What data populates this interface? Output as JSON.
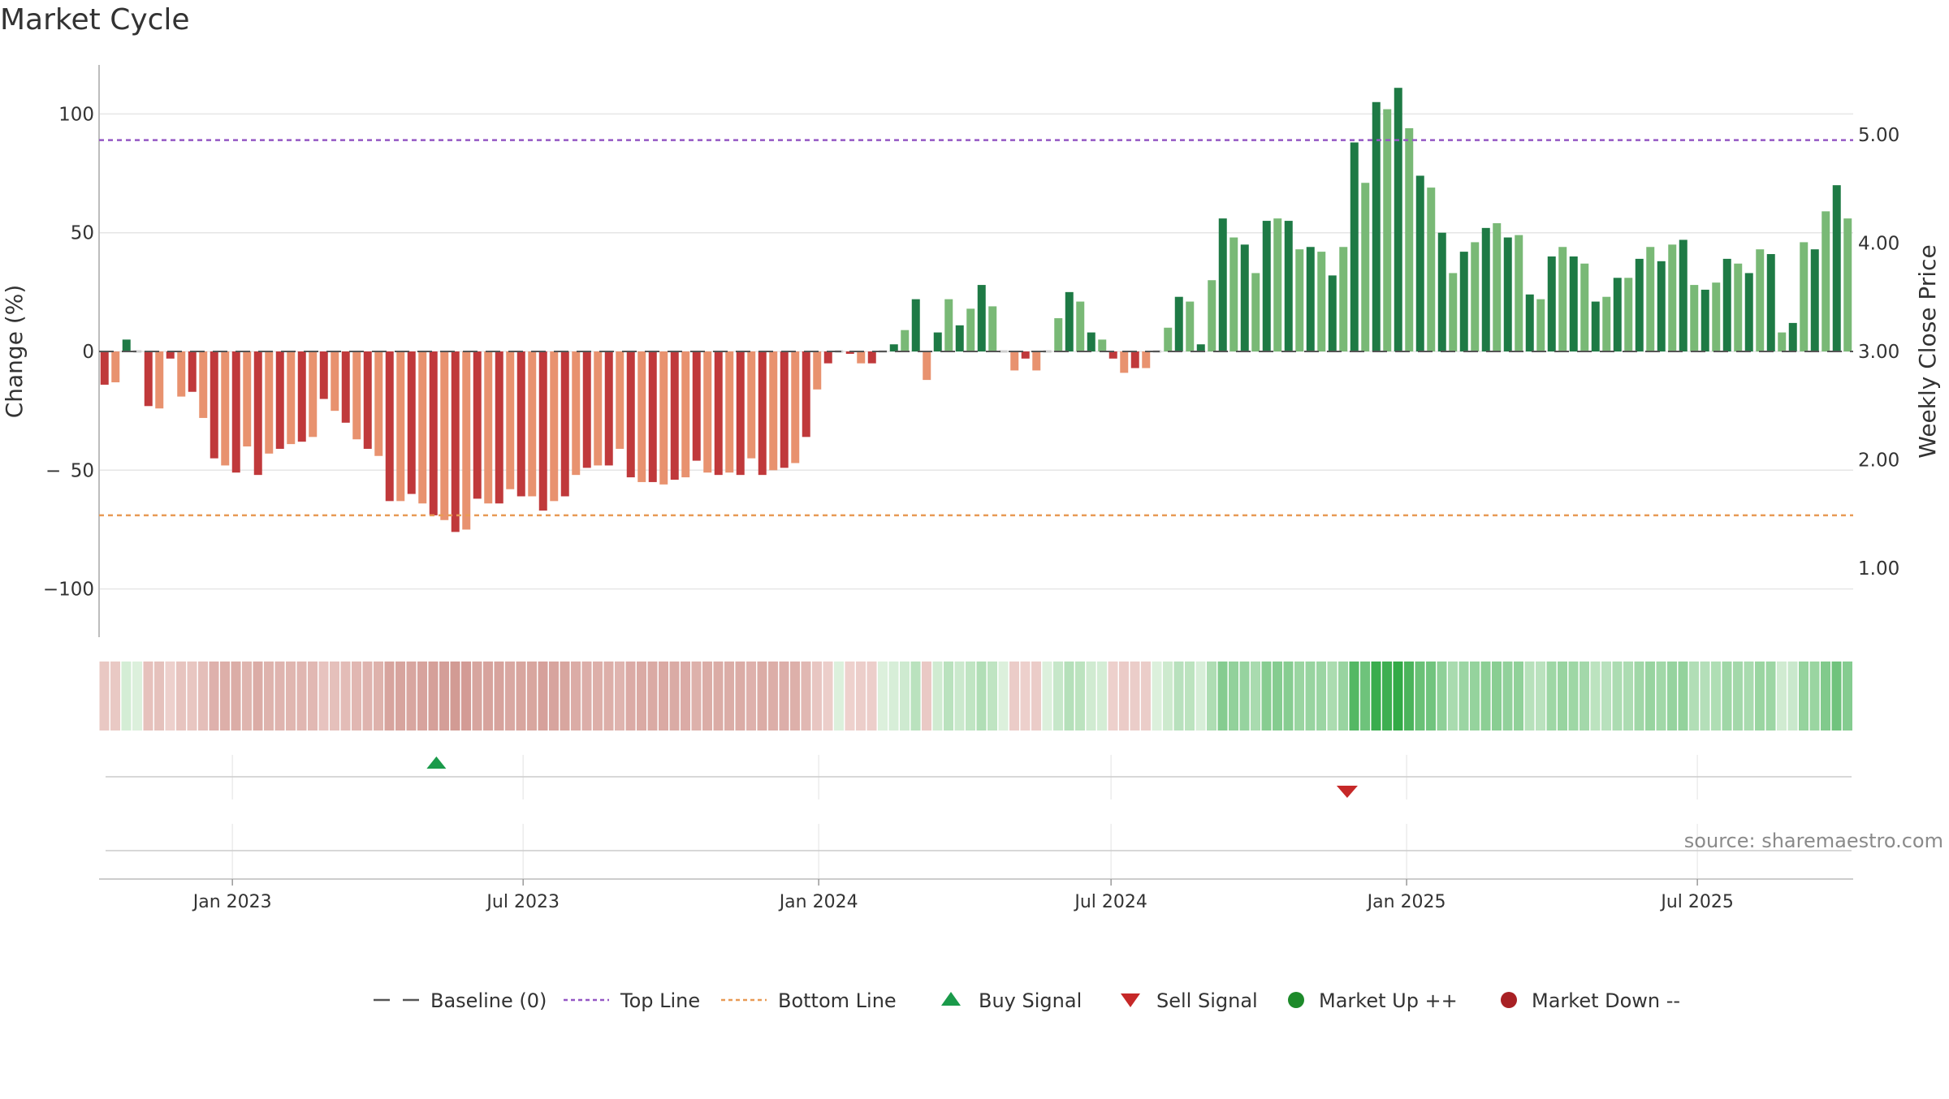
{
  "title": "Market Cycle",
  "source": "source: sharemaestro.com",
  "colors": {
    "down_dark": "#c0393b",
    "down_light": "#e8926f",
    "up_dark": "#1e7a45",
    "up_light": "#79b976",
    "top_line": "#9457c4",
    "bottom_line": "#e89a55",
    "baseline": "#555555",
    "buy": "#1a9a4a",
    "sell": "#c62828",
    "market_up": "#1d8a2a",
    "market_down": "#a82024"
  },
  "chart_data": {
    "type": "bar",
    "title": "Market Cycle",
    "ylabel": "Change (%)",
    "ylabel_right": "Weekly Close Price",
    "ylim": [
      -120,
      120
    ],
    "yticks": [
      100,
      50,
      0,
      -50,
      -100
    ],
    "ytick_labels": [
      "100",
      "50",
      "0",
      "− 50",
      "−100"
    ],
    "right_ylim": [
      0.3,
      5.6
    ],
    "right_yticks": [
      5.0,
      4.0,
      3.0,
      2.0,
      1.0
    ],
    "right_ytick_labels": [
      "5.00",
      "4.00",
      "3.00",
      "2.00",
      "1.00"
    ],
    "x_start": "2022-10-10",
    "x_end": "2025-10-06",
    "xticks": [
      "2023-01-01",
      "2023-07-01",
      "2024-01-01",
      "2024-07-01",
      "2025-01-01",
      "2025-07-01"
    ],
    "xtick_labels": [
      "Jan 2023",
      "Jul 2023",
      "Jan 2024",
      "Jul 2024",
      "Jan 2025",
      "Jul 2025"
    ],
    "top_line": 89,
    "bottom_line": -69,
    "series": [
      {
        "name": "Change (%)",
        "start_date": "2022-10-10",
        "values": [
          -14,
          -13,
          5,
          0,
          -23,
          -24,
          -3,
          -19,
          -17,
          -28,
          -45,
          -48,
          -51,
          -40,
          -52,
          -43,
          -41,
          -39,
          -38,
          -36,
          -20,
          -25,
          -30,
          -37,
          -41,
          -44,
          -63,
          -63,
          -60,
          -64,
          -69,
          -71,
          -76,
          -75,
          -62,
          -64,
          -64,
          -58,
          -61,
          -61,
          -67,
          -63,
          -61,
          -52,
          -49,
          -48,
          -48,
          -41,
          -53,
          -55,
          -55,
          -56,
          -54,
          -53,
          -46,
          -51,
          -52,
          -51,
          -52,
          -45,
          -52,
          -50,
          -49,
          -47,
          -36,
          -16,
          -5,
          0,
          -1,
          -5,
          -5,
          0,
          3,
          9,
          22,
          -12,
          8,
          22,
          11,
          18,
          28,
          19,
          0,
          -8,
          -3,
          -8,
          0,
          14,
          25,
          21,
          8,
          5,
          -3,
          -9,
          -7,
          -7,
          0,
          10,
          23,
          21,
          3,
          30,
          56,
          48,
          45,
          33,
          55,
          56,
          55,
          43,
          44,
          42,
          32,
          44,
          88,
          71,
          105,
          102,
          111,
          94,
          74,
          69,
          50,
          33,
          42,
          46,
          52,
          54,
          48,
          49,
          24,
          22,
          40,
          44,
          40,
          37,
          21,
          23,
          31,
          31,
          39,
          44,
          38,
          45,
          47,
          28,
          26,
          29,
          39,
          37,
          33,
          43,
          41,
          8,
          12,
          46,
          43,
          59,
          70,
          56
        ]
      }
    ],
    "signals": {
      "buy": [
        "2023-05-08"
      ],
      "sell": [
        "2024-11-25"
      ]
    },
    "legend_position": "bottom-center",
    "legend": [
      {
        "label": "Baseline (0)",
        "symbol": "dash",
        "color": "#555555"
      },
      {
        "label": "Top Line",
        "symbol": "dotted",
        "color": "#9457c4"
      },
      {
        "label": "Bottom Line",
        "symbol": "dotted",
        "color": "#e89a55"
      },
      {
        "label": "Buy Signal",
        "symbol": "triangle-up",
        "color": "#1a9a4a"
      },
      {
        "label": "Sell Signal",
        "symbol": "triangle-down",
        "color": "#c62828"
      },
      {
        "label": "Market Up ++",
        "symbol": "circle",
        "color": "#1d8a2a"
      },
      {
        "label": "Market Down --",
        "symbol": "circle",
        "color": "#a82024"
      }
    ],
    "grid": true
  }
}
